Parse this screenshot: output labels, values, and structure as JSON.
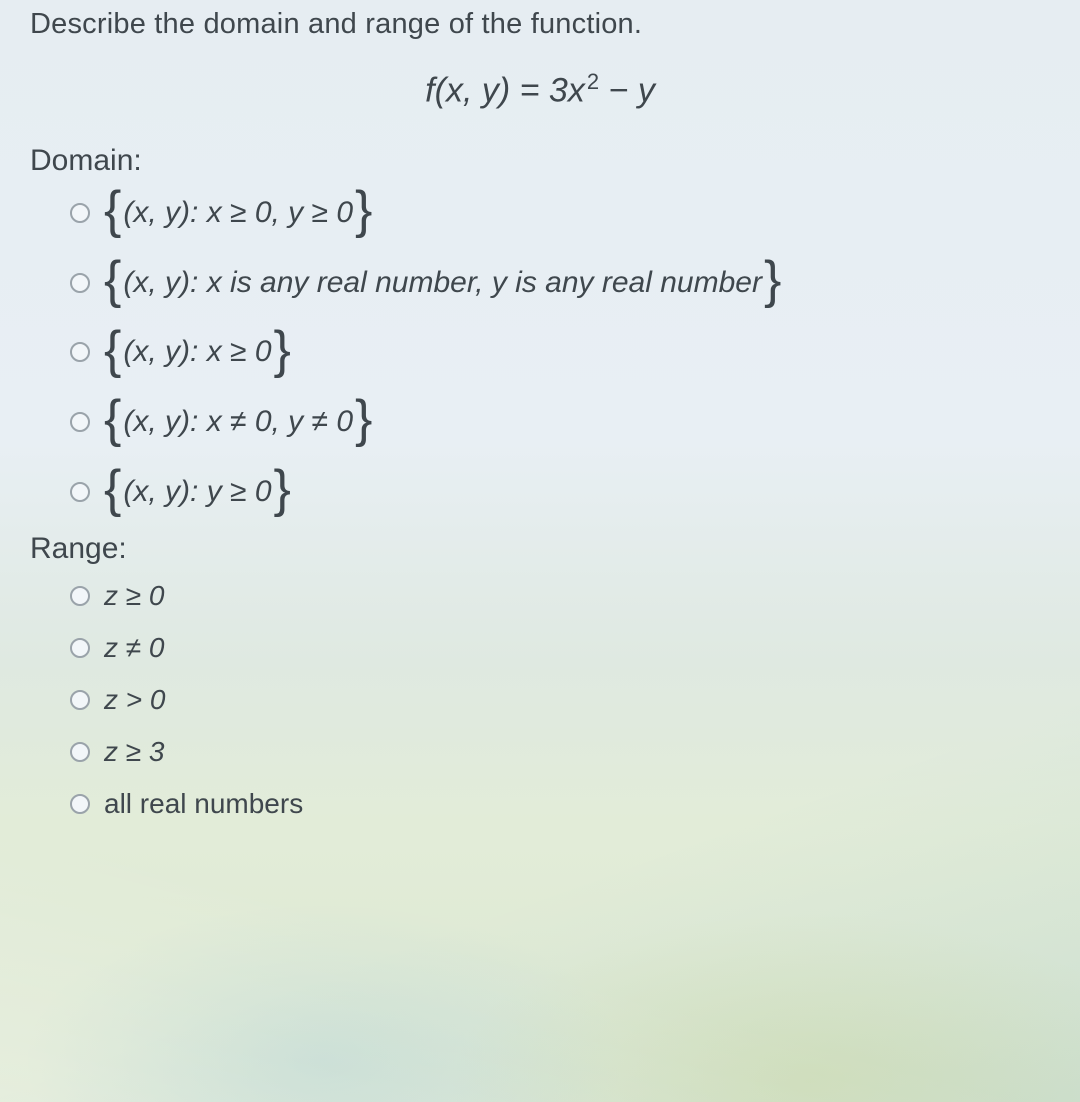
{
  "colors": {
    "text": "#3a4148",
    "bg_top": "#e6edf2",
    "bg_bottom": "#dde8d2",
    "radio_border": "#9aa3aa"
  },
  "typography": {
    "prompt_fontsize": 29,
    "equation_fontsize": 34,
    "section_fontsize": 30,
    "option_fontsize": 30,
    "range_option_fontsize": 28
  },
  "prompt": "Describe the domain and range of the function.",
  "equation": {
    "lhs": "f(x, y)",
    "eq": " = ",
    "rhs_a": "3x",
    "rhs_exp": "2",
    "rhs_b": " − y"
  },
  "domain": {
    "label": "Domain:",
    "options": [
      {
        "inner": "(x, y): x ≥ 0, y ≥ 0"
      },
      {
        "inner": "(x, y): x is any real number, y is any real number"
      },
      {
        "inner": "(x, y): x ≥ 0"
      },
      {
        "inner": "(x, y): x ≠ 0, y ≠ 0"
      },
      {
        "inner": "(x, y): y ≥ 0"
      }
    ]
  },
  "range": {
    "label": "Range:",
    "options": [
      {
        "text": "z ≥ 0"
      },
      {
        "text": "z ≠ 0"
      },
      {
        "text": "z > 0"
      },
      {
        "text": "z ≥ 3"
      },
      {
        "text": "all real numbers"
      }
    ]
  },
  "braces": {
    "left": "{",
    "right": "}"
  }
}
